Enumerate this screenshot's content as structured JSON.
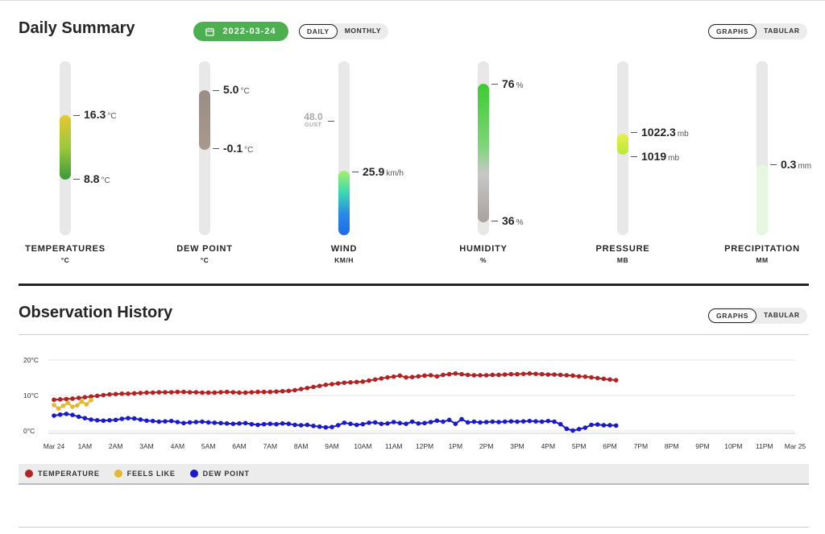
{
  "summary": {
    "title": "Daily Summary",
    "date": "2022-03-24",
    "period_tabs": [
      "DAILY",
      "MONTHLY"
    ],
    "active_period": "DAILY",
    "view_tabs": [
      "GRAPHS",
      "TABULAR"
    ],
    "active_view": "GRAPHS"
  },
  "gauges": {
    "temperature": {
      "label": "TEMPERATURES",
      "unit": "°C",
      "high": "16.3",
      "high_unit": "°C",
      "low": "8.8",
      "low_unit": "°C"
    },
    "dew_point": {
      "label": "DEW POINT",
      "unit": "°C",
      "high": "5.0",
      "high_unit": "°C",
      "low": "-0.1",
      "low_unit": "°C"
    },
    "wind": {
      "label": "WIND",
      "unit": "KM/H",
      "gust": "48.0",
      "gust_label": "GUST",
      "value": "25.9",
      "value_unit": "km/h"
    },
    "humidity": {
      "label": "HUMIDITY",
      "unit": "%",
      "high": "76",
      "high_unit": "%",
      "low": "36",
      "low_unit": "%"
    },
    "pressure": {
      "label": "PRESSURE",
      "unit": "MB",
      "high": "1022.3",
      "high_unit": "mb",
      "low": "1019",
      "low_unit": "mb"
    },
    "precipitation": {
      "label": "PRECIPITATION",
      "unit": "MM",
      "value": "0.3",
      "value_unit": "mm"
    }
  },
  "history": {
    "title": "Observation History",
    "view_tabs": [
      "GRAPHS",
      "TABULAR"
    ],
    "active_view": "GRAPHS",
    "legend": [
      {
        "label": "TEMPERATURE",
        "color": "#b22222"
      },
      {
        "label": "FEELS LIKE",
        "color": "#e6b830"
      },
      {
        "label": "DEW POINT",
        "color": "#1a1acc"
      }
    ]
  },
  "chart_data": {
    "type": "scatter",
    "y_ticks": [
      "20°C",
      "10°C",
      "0°C"
    ],
    "ylim": [
      0,
      20
    ],
    "x_ticks": [
      "Mar 24",
      "1AM",
      "2AM",
      "3AM",
      "4AM",
      "5AM",
      "6AM",
      "7AM",
      "8AM",
      "9AM",
      "10AM",
      "11AM",
      "12PM",
      "1PM",
      "2PM",
      "3PM",
      "4PM",
      "5PM",
      "6PM",
      "7PM",
      "8PM",
      "9PM",
      "10PM",
      "11PM",
      "Mar 25"
    ],
    "x_unit": "hours since midnight",
    "grid": true,
    "series": [
      {
        "name": "TEMPERATURE",
        "color": "#b22222",
        "x": [
          0,
          0.2,
          0.4,
          0.6,
          0.8,
          1,
          1.2,
          1.4,
          1.6,
          1.8,
          2,
          2.2,
          2.4,
          2.6,
          2.8,
          3,
          3.2,
          3.4,
          3.6,
          3.8,
          4,
          4.2,
          4.4,
          4.6,
          4.8,
          5,
          5.2,
          5.4,
          5.6,
          5.8,
          6,
          6.2,
          6.4,
          6.6,
          6.8,
          7,
          7.2,
          7.4,
          7.6,
          7.8,
          8,
          8.2,
          8.4,
          8.6,
          8.8,
          9,
          9.2,
          9.4,
          9.6,
          9.8,
          10,
          10.2,
          10.4,
          10.6,
          10.8,
          11,
          11.2,
          11.4,
          11.6,
          11.8,
          12,
          12.2,
          12.4,
          12.6,
          12.8,
          13,
          13.2,
          13.4,
          13.6,
          13.8,
          14,
          14.2,
          14.4,
          14.6,
          14.8,
          15,
          15.2,
          15.4,
          15.6,
          15.8,
          16,
          16.2,
          16.4,
          16.6,
          16.8,
          17,
          17.2,
          17.4,
          17.6,
          17.8,
          18,
          18.2
        ],
        "y": [
          8.8,
          8.9,
          9.0,
          9.1,
          9.3,
          9.5,
          9.7,
          9.9,
          10.1,
          10.3,
          10.4,
          10.5,
          10.5,
          10.6,
          10.7,
          10.8,
          10.8,
          10.9,
          10.9,
          10.9,
          11.0,
          11.0,
          10.9,
          10.9,
          10.8,
          10.8,
          10.8,
          10.9,
          11.0,
          10.9,
          10.8,
          10.8,
          10.9,
          11.0,
          11.0,
          11.0,
          11.1,
          11.2,
          11.3,
          11.5,
          11.8,
          12.1,
          12.4,
          12.7,
          13.0,
          13.2,
          13.4,
          13.6,
          13.7,
          13.8,
          13.9,
          14.2,
          14.5,
          14.8,
          15.1,
          15.3,
          15.6,
          15.1,
          15.2,
          15.4,
          15.6,
          15.7,
          15.4,
          15.8,
          16.0,
          16.2,
          16.0,
          15.8,
          15.7,
          15.7,
          15.7,
          15.8,
          15.8,
          15.9,
          16.0,
          16.0,
          16.1,
          16.2,
          16.1,
          16.0,
          15.9,
          15.9,
          15.8,
          15.7,
          15.6,
          15.4,
          15.3,
          15.1,
          14.9,
          14.7,
          14.5,
          14.3
        ]
      },
      {
        "name": "FEELS LIKE",
        "color": "#e6b830",
        "x": [
          0,
          0.15,
          0.3,
          0.45,
          0.6,
          0.75,
          0.9,
          1.05,
          1.2
        ],
        "y": [
          7.3,
          6.3,
          7.1,
          7.9,
          6.8,
          7.2,
          8.3,
          7.5,
          8.7
        ]
      },
      {
        "name": "DEW POINT",
        "color": "#1a1acc",
        "x": [
          0,
          0.2,
          0.4,
          0.6,
          0.8,
          1,
          1.2,
          1.4,
          1.6,
          1.8,
          2,
          2.2,
          2.4,
          2.6,
          2.8,
          3,
          3.2,
          3.4,
          3.6,
          3.8,
          4,
          4.2,
          4.4,
          4.6,
          4.8,
          5,
          5.2,
          5.4,
          5.6,
          5.8,
          6,
          6.2,
          6.4,
          6.6,
          6.8,
          7,
          7.2,
          7.4,
          7.6,
          7.8,
          8,
          8.2,
          8.4,
          8.6,
          8.8,
          9,
          9.2,
          9.4,
          9.6,
          9.8,
          10,
          10.2,
          10.4,
          10.6,
          10.8,
          11,
          11.2,
          11.4,
          11.6,
          11.8,
          12,
          12.2,
          12.4,
          12.6,
          12.8,
          13,
          13.2,
          13.4,
          13.6,
          13.8,
          14,
          14.2,
          14.4,
          14.6,
          14.8,
          15,
          15.2,
          15.4,
          15.6,
          15.8,
          16,
          16.2,
          16.4,
          16.6,
          16.8,
          17,
          17.2,
          17.4,
          17.6,
          17.8,
          18,
          18.2
        ],
        "y": [
          4.3,
          4.6,
          4.8,
          4.5,
          4.0,
          3.6,
          3.2,
          3.0,
          2.9,
          3.0,
          3.1,
          3.4,
          3.6,
          3.5,
          3.2,
          2.9,
          2.8,
          2.6,
          2.7,
          2.8,
          2.5,
          2.2,
          2.4,
          2.5,
          2.6,
          2.4,
          2.3,
          2.2,
          2.1,
          2.0,
          2.1,
          2.2,
          1.9,
          1.7,
          1.9,
          2.0,
          1.9,
          2.1,
          2.0,
          1.7,
          1.6,
          1.7,
          1.4,
          1.2,
          1.0,
          1.1,
          1.6,
          2.3,
          2.0,
          1.7,
          1.9,
          2.3,
          2.4,
          2.0,
          2.1,
          2.5,
          2.2,
          2.0,
          2.6,
          2.1,
          2.2,
          2.5,
          2.9,
          2.6,
          3.1,
          2.0,
          3.3,
          2.4,
          2.6,
          2.4,
          2.5,
          2.6,
          2.5,
          2.6,
          2.7,
          2.6,
          2.7,
          2.8,
          2.7,
          2.6,
          2.8,
          2.6,
          1.9,
          0.6,
          0.1,
          0.5,
          0.9,
          1.7,
          1.8,
          1.6,
          1.6,
          1.5
        ]
      }
    ]
  }
}
